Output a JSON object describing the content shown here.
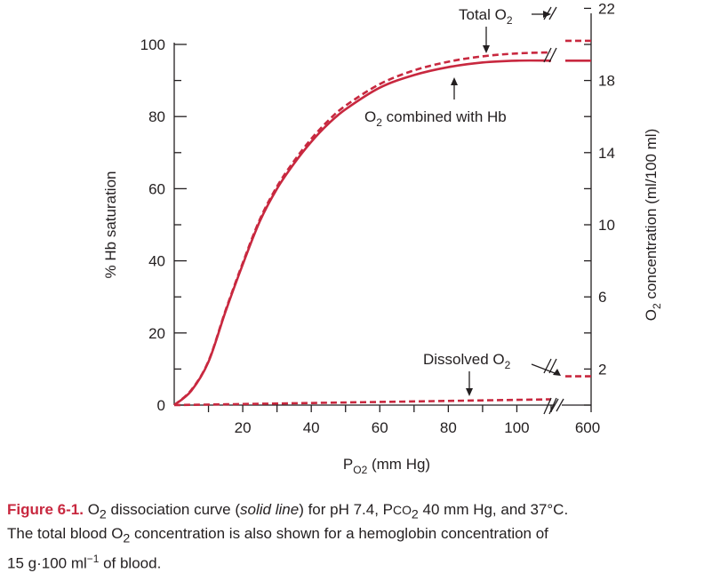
{
  "chart_data": {
    "type": "line",
    "xlabel": {
      "main": "P",
      "sub": "O2",
      "rest": " (mm Hg)"
    },
    "ylabel_left": "% Hb saturation",
    "ylabel_right": {
      "pre": "O",
      "sub": "2",
      "rest": " concentration (ml/100 ml)"
    },
    "x_ticks": [
      "20",
      "40",
      "60",
      "80",
      "100",
      "600"
    ],
    "y_left_ticks": [
      "0",
      "20",
      "40",
      "60",
      "80",
      "100"
    ],
    "y_right_ticks": [
      "2",
      "6",
      "10",
      "14",
      "18",
      "22"
    ],
    "xlim": [
      0,
      110
    ],
    "ylim_left": [
      0,
      100
    ],
    "y_right_scale": "O2 concentration in ml/100 ml; 20 ml/100 ml corresponds to 100% saturation",
    "series": [
      {
        "name": "O2 combined with Hb",
        "style": "solid",
        "color": "#c8283f",
        "x": [
          0,
          5,
          10,
          15,
          20,
          25,
          30,
          35,
          40,
          45,
          50,
          60,
          70,
          80,
          90,
          100,
          110
        ],
        "y": [
          0,
          4,
          12,
          26,
          39,
          51,
          60,
          67,
          73,
          78,
          82,
          88,
          91.5,
          93.7,
          95,
          95.5,
          95.5
        ]
      },
      {
        "name": "Total O2",
        "style": "dashed",
        "color": "#c8283f",
        "x": [
          0,
          5,
          10,
          15,
          20,
          25,
          30,
          35,
          40,
          45,
          50,
          60,
          70,
          80,
          90,
          100,
          110
        ],
        "y": [
          0,
          4.2,
          12.2,
          26.3,
          39.4,
          51.5,
          60.6,
          67.7,
          73.8,
          78.9,
          83,
          89,
          92.8,
          95.2,
          96.7,
          97.5,
          97.8
        ],
        "after_break_y": 101
      },
      {
        "name": "Dissolved O2",
        "style": "dashed",
        "color": "#c8283f",
        "x": [
          0,
          110
        ],
        "y": [
          0,
          1.6
        ],
        "after_break_y": 8
      }
    ],
    "annotations": [
      {
        "pre": "Total O",
        "sub": "2",
        "post": ""
      },
      {
        "pre": "O",
        "sub": "2",
        "post": " combined with Hb"
      },
      {
        "pre": "Dissolved O",
        "sub": "2",
        "post": ""
      }
    ],
    "grid": false,
    "legend": "none"
  },
  "caption": {
    "label": "Figure 6-1.",
    "p1": " O",
    "sub1": "2",
    "p2": " dissociation curve (",
    "em": "solid line",
    "p3": ") for pH 7.4, P",
    "sc": "CO",
    "sub2": "2",
    "p4": " 40 mm Hg, and 37°C.",
    "line2a": "The total blood O",
    "sub3": "2",
    "line2b": " concentration is also shown for a hemoglobin concentration of",
    "line3a": "15 g·100 ml",
    "sup": "−1",
    "line3b": " of blood."
  },
  "colors": {
    "curve": "#c8283f",
    "axis": "#231f20",
    "caption_label": "#c8283f"
  }
}
